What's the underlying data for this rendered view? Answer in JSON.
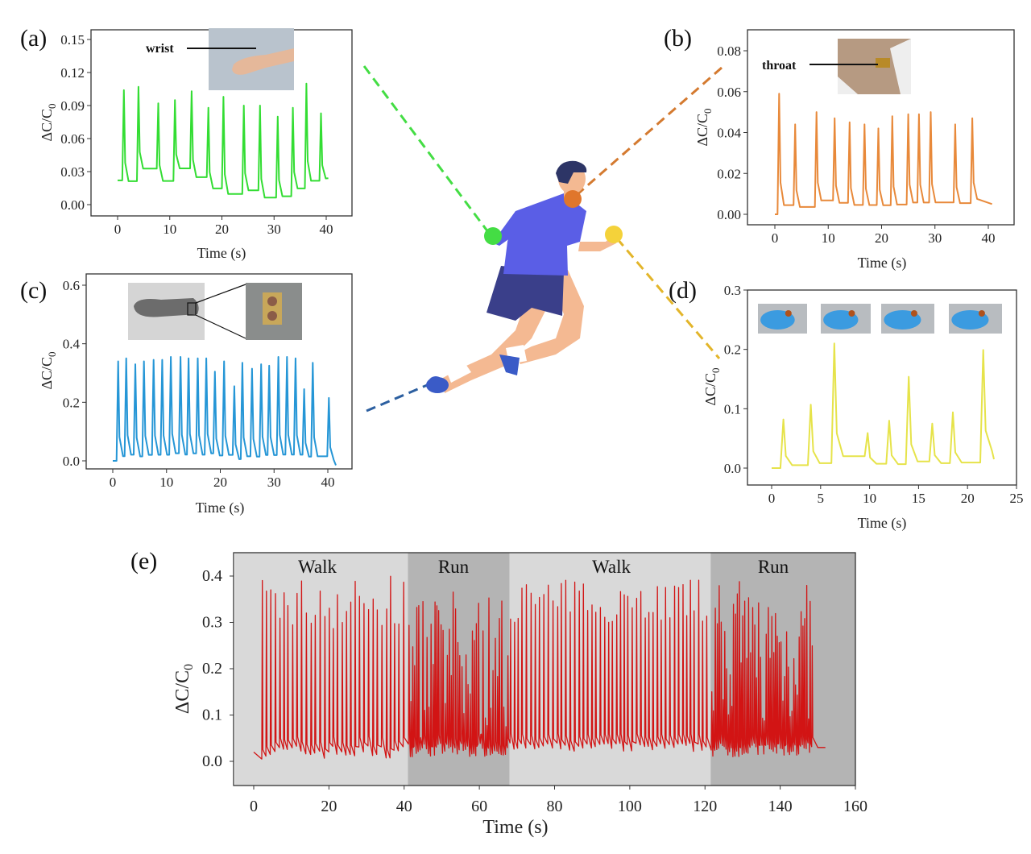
{
  "colors": {
    "a": "#33dd33",
    "b": "#e8893a",
    "c": "#2596d6",
    "d": "#e6e34a",
    "e": "#d21414",
    "walk_band": "#d9d9d9",
    "run_band": "#b4b4b4"
  },
  "chart_data": [
    {
      "id": "a",
      "panel_label": "(a)",
      "type": "line",
      "inset_label": "wrist",
      "xlabel": "Time (s)",
      "ylabel_main": "ΔC/C",
      "ylabel_sub": "0",
      "xlim": [
        -5,
        45
      ],
      "ylim": [
        -0.008,
        0.168
      ],
      "xticks": [
        0,
        10,
        20,
        30,
        40
      ],
      "xtick_labels": [
        "0",
        "10",
        "20",
        "30",
        "40"
      ],
      "yticks": [
        0,
        0.03,
        0.06,
        0.09,
        0.12,
        0.15
      ],
      "ytick_labels": [
        "0.00",
        "0.03",
        "0.06",
        "0.09",
        "0.12",
        "0.15"
      ],
      "start": [
        0,
        0.022
      ],
      "end": [
        40.4,
        0.024
      ],
      "peaks_t": [
        1.2,
        4.0,
        7.8,
        11.0,
        14.2,
        17.4,
        20.3,
        24.2,
        27.3,
        30.7,
        33.6,
        36.2,
        39.0
      ],
      "peaks_y": [
        0.104,
        0.107,
        0.092,
        0.095,
        0.103,
        0.088,
        0.098,
        0.09,
        0.09,
        0.08,
        0.088,
        0.11,
        0.083
      ],
      "baseline": [
        0.016,
        0.028,
        0.017,
        0.029,
        0.02,
        0.01,
        0.004,
        0.008,
        0.001,
        0.003,
        0.01,
        0.016,
        0.02
      ]
    },
    {
      "id": "b",
      "panel_label": "(b)",
      "type": "line",
      "inset_label": "throat",
      "xlabel": "Time (s)",
      "ylabel_main": "ΔC/C",
      "ylabel_sub": "0",
      "xlim": [
        -5,
        45
      ],
      "ylim": [
        -0.005,
        0.09
      ],
      "xticks": [
        0,
        10,
        20,
        30,
        40
      ],
      "xtick_labels": [
        "0",
        "10",
        "20",
        "30",
        "40"
      ],
      "yticks": [
        0,
        0.02,
        0.04,
        0.06,
        0.08
      ],
      "ytick_labels": [
        "0.00",
        "0.02",
        "0.04",
        "0.06",
        "0.08"
      ],
      "start": [
        0,
        0.0
      ],
      "end": [
        40.7,
        0.005
      ],
      "peaks_t": [
        0.8,
        3.8,
        7.8,
        11.2,
        14.0,
        16.8,
        19.4,
        22.0,
        25.0,
        27.0,
        29.2,
        33.8,
        37.0
      ],
      "peaks_y": [
        0.059,
        0.044,
        0.05,
        0.047,
        0.045,
        0.044,
        0.042,
        0.048,
        0.049,
        0.049,
        0.05,
        0.044,
        0.047
      ],
      "baseline": [
        0.001,
        0.001,
        0.004,
        0.003,
        0.002,
        0.002,
        0.002,
        0.002,
        0.003,
        0.003,
        0.003,
        0.003,
        0.005
      ]
    },
    {
      "id": "c",
      "panel_label": "(c)",
      "type": "line",
      "xlabel": "Time (s)",
      "ylabel_main": "ΔC/C",
      "ylabel_sub": "0",
      "xlim": [
        -5,
        45
      ],
      "ylim": [
        -0.03,
        0.63
      ],
      "xticks": [
        0,
        10,
        20,
        30,
        40
      ],
      "xtick_labels": [
        "0",
        "10",
        "20",
        "30",
        "40"
      ],
      "yticks": [
        0,
        0.2,
        0.4,
        0.6
      ],
      "ytick_labels": [
        "0.0",
        "0.2",
        "0.4",
        "0.6"
      ],
      "start": [
        0,
        0.0
      ],
      "end": [
        41.5,
        -0.015
      ],
      "peaks_t": [
        1.0,
        2.5,
        4.2,
        5.8,
        7.6,
        9.2,
        10.8,
        12.6,
        14.1,
        15.8,
        17.4,
        19.0,
        20.7,
        22.6,
        24.1,
        25.9,
        27.6,
        29.1,
        30.8,
        32.4,
        34.0,
        35.6,
        37.2,
        40.2
      ],
      "peaks_y": [
        0.34,
        0.35,
        0.33,
        0.34,
        0.345,
        0.345,
        0.355,
        0.355,
        0.35,
        0.35,
        0.35,
        0.305,
        0.34,
        0.255,
        0.335,
        0.315,
        0.33,
        0.325,
        0.355,
        0.355,
        0.35,
        0.245,
        0.335,
        0.215
      ],
      "baseline": [
        -0.005,
        0,
        -0.005,
        0,
        0,
        0,
        0.005,
        0,
        0.005,
        0,
        0.005,
        0,
        0,
        -0.01,
        -0.005,
        -0.005,
        0,
        0,
        0,
        0,
        0,
        0,
        -0.005,
        -0.01
      ]
    },
    {
      "id": "d",
      "panel_label": "(d)",
      "type": "line",
      "xlabel": "Time (s)",
      "ylabel_main": "ΔC/C",
      "ylabel_sub": "0",
      "xlim": [
        -2.5,
        25
      ],
      "ylim": [
        -0.025,
        0.3
      ],
      "xticks": [
        0,
        5,
        10,
        15,
        20,
        25
      ],
      "xtick_labels": [
        "0",
        "5",
        "10",
        "15",
        "20",
        "25"
      ],
      "yticks": [
        0,
        0.1,
        0.2,
        0.3
      ],
      "ytick_labels": [
        "0.0",
        "0.1",
        "0.2",
        "0.3"
      ],
      "start": [
        0,
        0.0
      ],
      "end": [
        22.7,
        0.015
      ],
      "peaks_t": [
        1.2,
        4.0,
        6.4,
        9.8,
        12.0,
        14.0,
        16.4,
        18.5,
        21.6
      ],
      "peaks_y": [
        0.082,
        0.107,
        0.21,
        0.059,
        0.08,
        0.154,
        0.075,
        0.094,
        0.199
      ],
      "baseline": [
        0.0,
        0.002,
        0.008,
        0.004,
        0.002,
        0.002,
        0.004,
        0.004,
        0.018
      ]
    },
    {
      "id": "e",
      "panel_label": "(e)",
      "type": "line",
      "xlabel": "Time (s)",
      "ylabel_main": "ΔC/C",
      "ylabel_sub": "0",
      "xlim": [
        -5,
        160
      ],
      "ylim": [
        -0.05,
        0.45
      ],
      "xticks": [
        0,
        20,
        40,
        60,
        80,
        100,
        120,
        140,
        160
      ],
      "xtick_labels": [
        "0",
        "20",
        "40",
        "60",
        "80",
        "100",
        "120",
        "140",
        "160"
      ],
      "yticks": [
        0,
        0.1,
        0.2,
        0.3,
        0.4
      ],
      "ytick_labels": [
        "0.0",
        "0.1",
        "0.2",
        "0.3",
        "0.4"
      ],
      "start": [
        0,
        0.02
      ],
      "end": [
        152,
        0.03
      ],
      "segments": [
        {
          "label": "Walk",
          "start": -5,
          "end": 41,
          "signal_start": 2,
          "peak_interval_s": 1.15,
          "peak_range": [
            0.28,
            0.4
          ],
          "base_range": [
            0.005,
            0.035
          ]
        },
        {
          "label": "Run",
          "start": 41,
          "end": 68,
          "peak_interval_s": 0.55,
          "peak_range": [
            0.05,
            0.37
          ],
          "base_range": [
            0.01,
            0.04
          ]
        },
        {
          "label": "Walk",
          "start": 68,
          "end": 121.5,
          "peak_interval_s": 1.1,
          "peak_range": [
            0.3,
            0.395
          ],
          "base_range": [
            0.02,
            0.04
          ]
        },
        {
          "label": "Run",
          "start": 121.5,
          "end": 160,
          "signal_end": 149,
          "peak_interval_s": 0.5,
          "peak_range": [
            0.08,
            0.39
          ],
          "base_range": [
            0.01,
            0.04
          ]
        }
      ]
    }
  ]
}
